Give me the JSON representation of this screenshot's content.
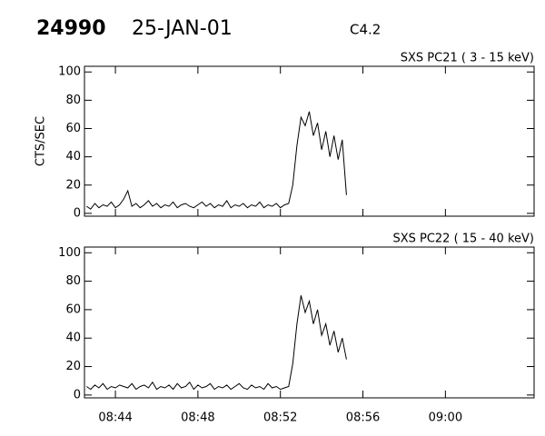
{
  "header": {
    "id": "24990",
    "date": "25-JAN-01",
    "class": "C4.2"
  },
  "chart_data": [
    {
      "type": "line",
      "title": "SXS PC21  (  3 - 15 keV)",
      "y_label": "CTS/SEC",
      "x": [
        42.6,
        42.8,
        43.0,
        43.2,
        43.4,
        43.6,
        43.8,
        44.0,
        44.2,
        44.4,
        44.6,
        44.8,
        45.0,
        45.2,
        45.4,
        45.6,
        45.8,
        46.0,
        46.2,
        46.4,
        46.6,
        46.8,
        47.0,
        47.2,
        47.4,
        47.6,
        47.8,
        48.0,
        48.2,
        48.4,
        48.6,
        48.8,
        49.0,
        49.2,
        49.4,
        49.6,
        49.8,
        50.0,
        50.2,
        50.4,
        50.6,
        50.8,
        51.0,
        51.2,
        51.4,
        51.6,
        51.8,
        52.0,
        52.2,
        52.4,
        52.6,
        52.8,
        53.0,
        53.2,
        53.4,
        53.6,
        53.8,
        54.0,
        54.2,
        54.4,
        54.6,
        54.8,
        55.0,
        55.2
      ],
      "values": [
        5,
        3,
        7,
        4,
        6,
        5,
        8,
        4,
        6,
        10,
        16,
        5,
        7,
        4,
        6,
        9,
        5,
        7,
        4,
        6,
        5,
        8,
        4,
        6,
        7,
        5,
        4,
        6,
        8,
        5,
        7,
        4,
        6,
        5,
        9,
        4,
        6,
        5,
        7,
        4,
        6,
        5,
        8,
        4,
        6,
        5,
        7,
        4,
        6,
        7,
        20,
        48,
        68,
        62,
        72,
        55,
        64,
        45,
        58,
        40,
        55,
        38,
        52,
        13
      ],
      "color": "#000000",
      "xlim": [
        42.5,
        64.3
      ],
      "ylim": [
        -2,
        104
      ],
      "yticks": [
        0,
        20,
        40,
        60,
        80,
        100
      ],
      "xticks": [
        {
          "value": 44,
          "label": "08:44"
        },
        {
          "value": 48,
          "label": "08:48"
        },
        {
          "value": 52,
          "label": "08:52"
        },
        {
          "value": 56,
          "label": "08:56"
        },
        {
          "value": 60,
          "label": "09:00"
        }
      ]
    },
    {
      "type": "line",
      "title": "SXS PC22  ( 15 - 40 keV)",
      "x": [
        42.6,
        42.8,
        43.0,
        43.2,
        43.4,
        43.6,
        43.8,
        44.0,
        44.2,
        44.4,
        44.6,
        44.8,
        45.0,
        45.2,
        45.4,
        45.6,
        45.8,
        46.0,
        46.2,
        46.4,
        46.6,
        46.8,
        47.0,
        47.2,
        47.4,
        47.6,
        47.8,
        48.0,
        48.2,
        48.4,
        48.6,
        48.8,
        49.0,
        49.2,
        49.4,
        49.6,
        49.8,
        50.0,
        50.2,
        50.4,
        50.6,
        50.8,
        51.0,
        51.2,
        51.4,
        51.6,
        51.8,
        52.0,
        52.2,
        52.4,
        52.6,
        52.8,
        53.0,
        53.2,
        53.4,
        53.6,
        53.8,
        54.0,
        54.2,
        54.4,
        54.6,
        54.8,
        55.0,
        55.2
      ],
      "values": [
        6,
        4,
        7,
        5,
        8,
        4,
        6,
        5,
        7,
        6,
        5,
        8,
        4,
        6,
        7,
        5,
        9,
        4,
        6,
        5,
        7,
        4,
        8,
        5,
        6,
        9,
        4,
        7,
        5,
        6,
        8,
        4,
        6,
        5,
        7,
        4,
        6,
        8,
        5,
        4,
        7,
        5,
        6,
        4,
        8,
        5,
        6,
        4,
        5,
        6,
        22,
        50,
        70,
        58,
        66,
        50,
        60,
        42,
        50,
        35,
        45,
        30,
        40,
        25
      ],
      "color": "#000000",
      "xlim": [
        42.5,
        64.3
      ],
      "ylim": [
        -2,
        104
      ],
      "yticks": [
        0,
        20,
        40,
        60,
        80,
        100
      ],
      "xticks": [
        {
          "value": 44,
          "label": "08:44"
        },
        {
          "value": 48,
          "label": "08:48"
        },
        {
          "value": 52,
          "label": "08:52"
        },
        {
          "value": 56,
          "label": "08:56"
        },
        {
          "value": 60,
          "label": "09:00"
        }
      ]
    }
  ]
}
